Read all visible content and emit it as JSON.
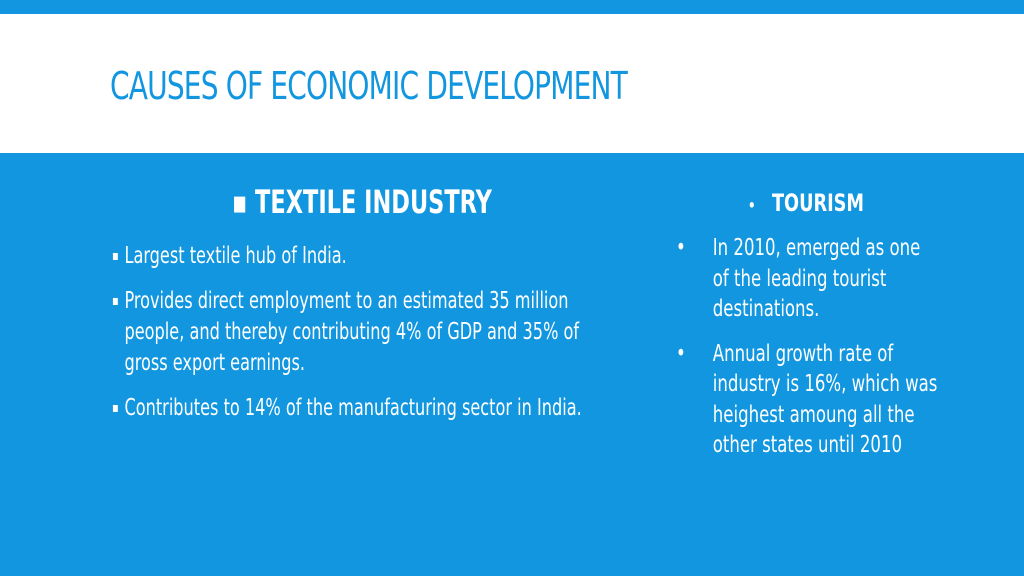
{
  "slide": {
    "title": "CAUSES OF ECONOMIC DEVELOPMENT"
  },
  "left": {
    "heading": "TEXTILE INDUSTRY",
    "items": [
      "Largest textile hub of India.",
      "Provides direct employment to an estimated 35 million people, and thereby contributing 4% of GDP and 35% of gross export earnings.",
      "Contributes to 14% of the manufacturing sector in India."
    ]
  },
  "right": {
    "heading": "TOURISM",
    "items": [
      "In 2010, emerged as one of the leading tourist destinations.",
      "Annual growth rate of industry is 16%, which was heighest amoung all the other states until 2010"
    ]
  },
  "colors": {
    "accent": "#1196df",
    "background": "#ffffff",
    "text_on_accent": "#ffffff"
  }
}
